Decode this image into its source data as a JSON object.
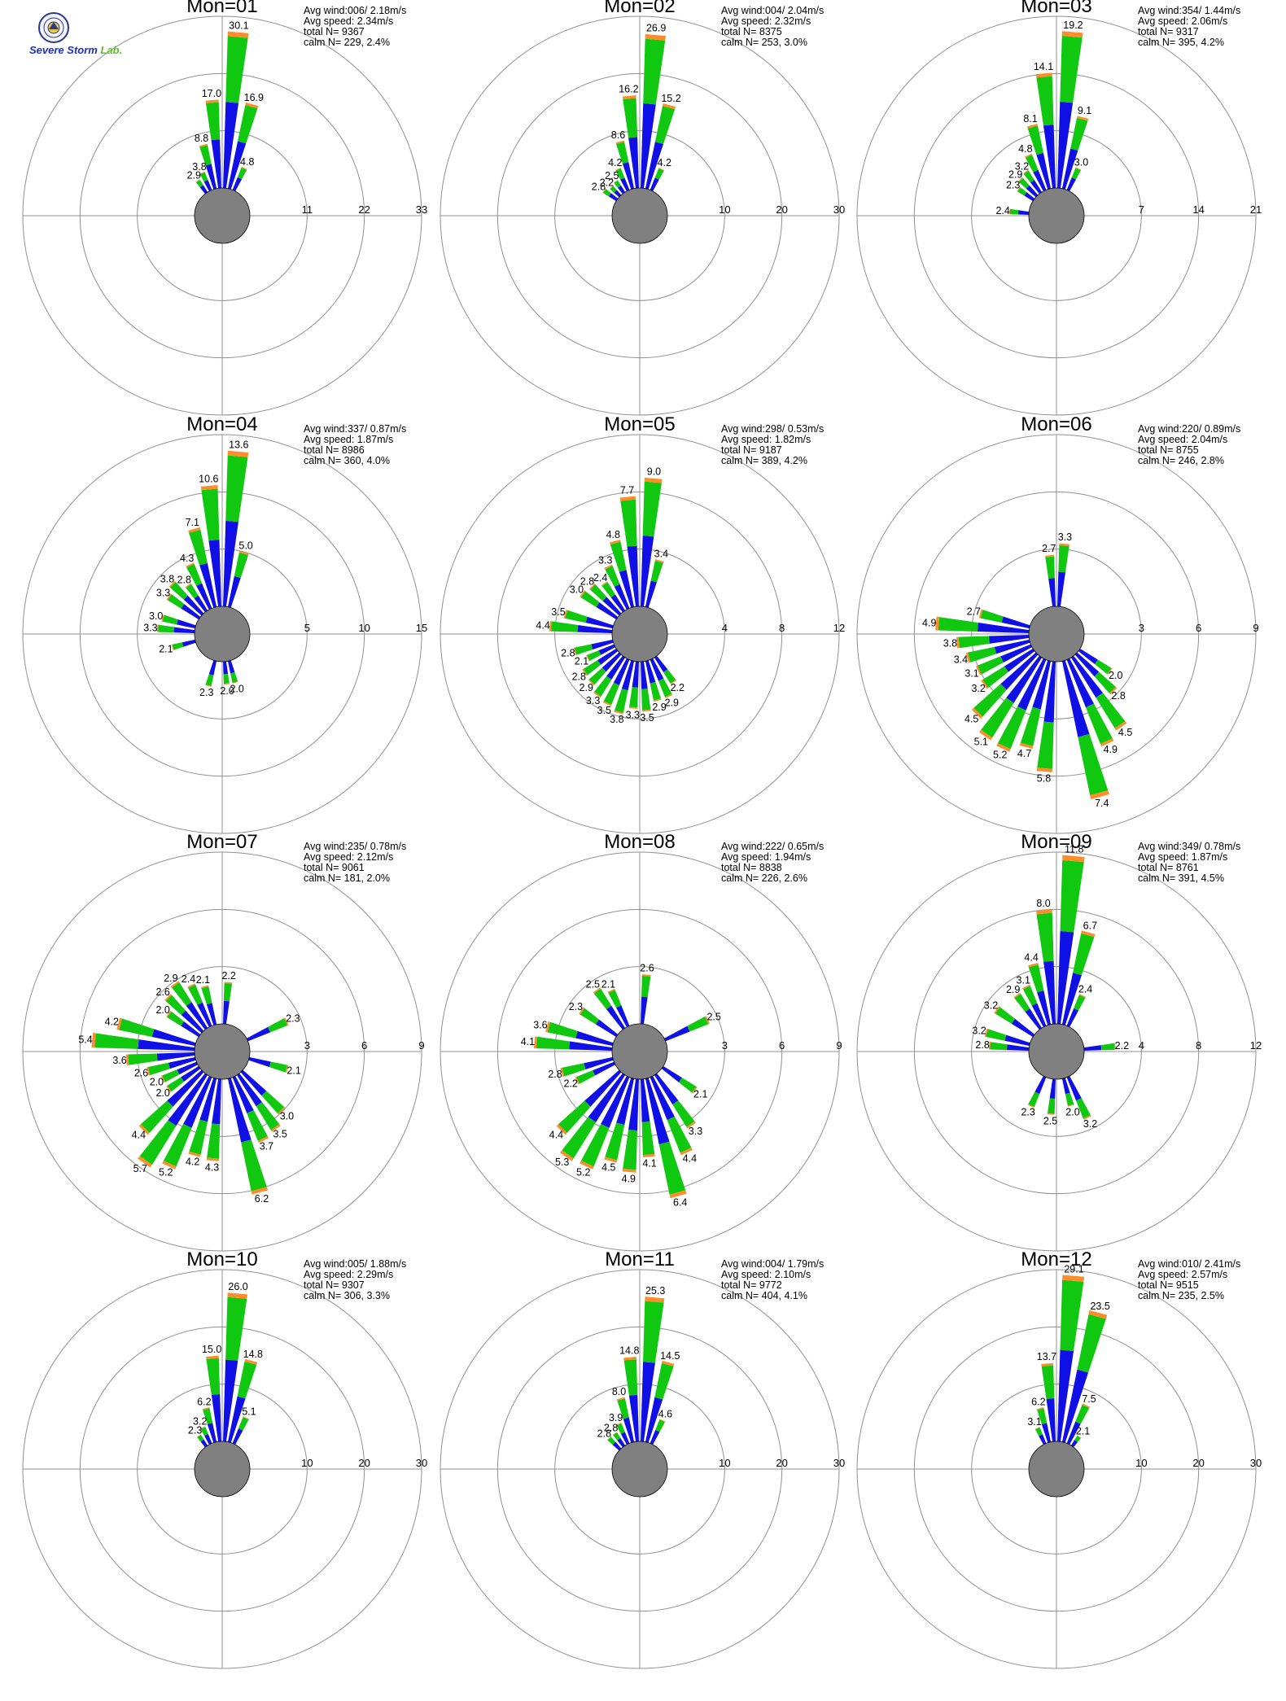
{
  "logo": {
    "line1": "Severe",
    "line2": "Storm",
    "line3": "Lab."
  },
  "colors": {
    "low": "#1010e6",
    "mid": "#10c810",
    "high": "#ff8c2a",
    "calm": "#808080",
    "grid": "#909090"
  },
  "chart_data": [
    {
      "type": "wind-rose",
      "title": "Mon=01",
      "stats": [
        "Avg wind:006/ 2.18m/s",
        "Avg speed: 2.34m/s",
        "total N=      9367",
        "calm N=    229,   2.4%"
      ],
      "rings": [
        11,
        22,
        33
      ],
      "labeled_bars": [
        {
          "dir": 5,
          "value": 30.1
        },
        {
          "dir": 355,
          "value": 17.0
        },
        {
          "dir": 15,
          "value": 16.9
        },
        {
          "dir": 345,
          "value": 8.8
        },
        {
          "dir": 25,
          "value": 4.8
        },
        {
          "dir": 335,
          "value": 3.8
        },
        {
          "dir": 325,
          "value": 2.9
        }
      ]
    },
    {
      "type": "wind-rose",
      "title": "Mon=02",
      "stats": [
        "Avg wind:004/ 2.04m/s",
        "Avg speed: 2.32m/s",
        "total N=      8375",
        "calm N=    253,   3.0%"
      ],
      "rings": [
        10,
        20,
        30
      ],
      "labeled_bars": [
        {
          "dir": 5,
          "value": 26.9
        },
        {
          "dir": 355,
          "value": 16.2
        },
        {
          "dir": 15,
          "value": 15.2
        },
        {
          "dir": 345,
          "value": 8.6
        },
        {
          "dir": 335,
          "value": 4.2
        },
        {
          "dir": 25,
          "value": 4.2
        },
        {
          "dir": 325,
          "value": 2.5
        },
        {
          "dir": 315,
          "value": 2.2
        },
        {
          "dir": 305,
          "value": 2.8
        }
      ]
    },
    {
      "type": "wind-rose",
      "title": "Mon=03",
      "stats": [
        "Avg wind:354/ 1.44m/s",
        "Avg speed: 2.06m/s",
        "total N=      9317",
        "calm N=    395,   4.2%"
      ],
      "rings": [
        7,
        14,
        21
      ],
      "labeled_bars": [
        {
          "dir": 5,
          "value": 19.2
        },
        {
          "dir": 355,
          "value": 14.1
        },
        {
          "dir": 15,
          "value": 9.1
        },
        {
          "dir": 345,
          "value": 8.1
        },
        {
          "dir": 335,
          "value": 4.8
        },
        {
          "dir": 25,
          "value": 3.0
        },
        {
          "dir": 325,
          "value": 3.2
        },
        {
          "dir": 315,
          "value": 2.9
        },
        {
          "dir": 305,
          "value": 2.3
        },
        {
          "dir": 275,
          "value": 2.4
        }
      ]
    },
    {
      "type": "wind-rose",
      "title": "Mon=04",
      "stats": [
        "Avg wind:337/ 0.87m/s",
        "Avg speed: 1.87m/s",
        "total N=      8986",
        "calm N=    360,   4.0%"
      ],
      "rings": [
        5,
        10,
        15
      ],
      "labeled_bars": [
        {
          "dir": 5,
          "value": 13.6
        },
        {
          "dir": 355,
          "value": 10.6
        },
        {
          "dir": 345,
          "value": 7.1
        },
        {
          "dir": 15,
          "value": 5.0
        },
        {
          "dir": 335,
          "value": 4.3
        },
        {
          "dir": 325,
          "value": 2.8
        },
        {
          "dir": 315,
          "value": 3.8
        },
        {
          "dir": 305,
          "value": 3.3
        },
        {
          "dir": 285,
          "value": 3.0
        },
        {
          "dir": 275,
          "value": 3.3
        },
        {
          "dir": 255,
          "value": 2.1
        },
        {
          "dir": 195,
          "value": 2.3
        },
        {
          "dir": 175,
          "value": 2.0
        },
        {
          "dir": 165,
          "value": 2.0
        }
      ]
    },
    {
      "type": "wind-rose",
      "title": "Mon=05",
      "stats": [
        "Avg wind:298/ 0.53m/s",
        "Avg speed: 1.82m/s",
        "total N=      9187",
        "calm N=    389,   4.2%"
      ],
      "rings": [
        4,
        8,
        12
      ],
      "labeled_bars": [
        {
          "dir": 5,
          "value": 9.0
        },
        {
          "dir": 355,
          "value": 7.7
        },
        {
          "dir": 345,
          "value": 4.8
        },
        {
          "dir": 15,
          "value": 3.4
        },
        {
          "dir": 335,
          "value": 3.3
        },
        {
          "dir": 325,
          "value": 2.4
        },
        {
          "dir": 315,
          "value": 2.8
        },
        {
          "dir": 305,
          "value": 3.0
        },
        {
          "dir": 285,
          "value": 3.5
        },
        {
          "dir": 275,
          "value": 4.4
        },
        {
          "dir": 255,
          "value": 2.8
        },
        {
          "dir": 245,
          "value": 2.1
        },
        {
          "dir": 235,
          "value": 2.8
        },
        {
          "dir": 225,
          "value": 2.9
        },
        {
          "dir": 215,
          "value": 3.3
        },
        {
          "dir": 205,
          "value": 3.5
        },
        {
          "dir": 195,
          "value": 3.8
        },
        {
          "dir": 185,
          "value": 3.3
        },
        {
          "dir": 175,
          "value": 3.5
        },
        {
          "dir": 165,
          "value": 2.9
        },
        {
          "dir": 155,
          "value": 2.9
        },
        {
          "dir": 145,
          "value": 2.2
        }
      ]
    },
    {
      "type": "wind-rose",
      "title": "Mon=06",
      "stats": [
        "Avg wind:220/ 0.89m/s",
        "Avg speed: 2.04m/s",
        "total N=      8755",
        "calm N=    246,   2.8%"
      ],
      "rings": [
        3,
        6,
        9
      ],
      "labeled_bars": [
        {
          "dir": 5,
          "value": 3.3
        },
        {
          "dir": 355,
          "value": 2.7
        },
        {
          "dir": 285,
          "value": 2.7
        },
        {
          "dir": 275,
          "value": 4.9
        },
        {
          "dir": 265,
          "value": 3.8
        },
        {
          "dir": 255,
          "value": 3.4
        },
        {
          "dir": 245,
          "value": 3.1
        },
        {
          "dir": 235,
          "value": 3.2
        },
        {
          "dir": 225,
          "value": 4.5
        },
        {
          "dir": 215,
          "value": 5.1
        },
        {
          "dir": 205,
          "value": 5.2
        },
        {
          "dir": 195,
          "value": 4.7
        },
        {
          "dir": 185,
          "value": 5.8
        },
        {
          "dir": 165,
          "value": 7.4
        },
        {
          "dir": 155,
          "value": 4.9
        },
        {
          "dir": 145,
          "value": 4.5
        },
        {
          "dir": 135,
          "value": 2.8
        },
        {
          "dir": 125,
          "value": 2.0
        }
      ]
    },
    {
      "type": "wind-rose",
      "title": "Mon=07",
      "stats": [
        "Avg wind:235/ 0.78m/s",
        "Avg speed: 2.12m/s",
        "total N=      9061",
        "calm N=    181,   2.0%"
      ],
      "rings": [
        3,
        6,
        9
      ],
      "labeled_bars": [
        {
          "dir": 5,
          "value": 2.2
        },
        {
          "dir": 345,
          "value": 2.1
        },
        {
          "dir": 335,
          "value": 2.4
        },
        {
          "dir": 325,
          "value": 2.9
        },
        {
          "dir": 315,
          "value": 2.6
        },
        {
          "dir": 305,
          "value": 2.0
        },
        {
          "dir": 285,
          "value": 4.2
        },
        {
          "dir": 275,
          "value": 5.4
        },
        {
          "dir": 265,
          "value": 3.6
        },
        {
          "dir": 255,
          "value": 2.6
        },
        {
          "dir": 245,
          "value": 2.0
        },
        {
          "dir": 235,
          "value": 2.0
        },
        {
          "dir": 225,
          "value": 4.4
        },
        {
          "dir": 215,
          "value": 5.7
        },
        {
          "dir": 205,
          "value": 5.2
        },
        {
          "dir": 195,
          "value": 4.2
        },
        {
          "dir": 185,
          "value": 4.3
        },
        {
          "dir": 165,
          "value": 6.2
        },
        {
          "dir": 155,
          "value": 3.7
        },
        {
          "dir": 145,
          "value": 3.5
        },
        {
          "dir": 135,
          "value": 3.0
        },
        {
          "dir": 105,
          "value": 2.1
        },
        {
          "dir": 65,
          "value": 2.3
        }
      ]
    },
    {
      "type": "wind-rose",
      "title": "Mon=08",
      "stats": [
        "Avg wind:222/ 0.65m/s",
        "Avg speed: 1.94m/s",
        "total N=      8838",
        "calm N=    226,   2.6%"
      ],
      "rings": [
        3,
        6,
        9
      ],
      "labeled_bars": [
        {
          "dir": 5,
          "value": 2.6
        },
        {
          "dir": 335,
          "value": 2.1
        },
        {
          "dir": 325,
          "value": 2.5
        },
        {
          "dir": 305,
          "value": 2.3
        },
        {
          "dir": 285,
          "value": 3.6
        },
        {
          "dir": 275,
          "value": 4.1
        },
        {
          "dir": 255,
          "value": 2.8
        },
        {
          "dir": 245,
          "value": 2.2
        },
        {
          "dir": 225,
          "value": 4.4
        },
        {
          "dir": 215,
          "value": 5.3
        },
        {
          "dir": 205,
          "value": 5.2
        },
        {
          "dir": 195,
          "value": 4.5
        },
        {
          "dir": 185,
          "value": 4.9
        },
        {
          "dir": 175,
          "value": 4.1
        },
        {
          "dir": 165,
          "value": 6.4
        },
        {
          "dir": 155,
          "value": 4.4
        },
        {
          "dir": 145,
          "value": 3.3
        },
        {
          "dir": 125,
          "value": 2.1
        },
        {
          "dir": 65,
          "value": 2.5
        }
      ]
    },
    {
      "type": "wind-rose",
      "title": "Mon=09",
      "stats": [
        "Avg wind:349/ 0.78m/s",
        "Avg speed: 1.87m/s",
        "total N=      8761",
        "calm N=    391,   4.5%"
      ],
      "rings": [
        4,
        8,
        12
      ],
      "labeled_bars": [
        {
          "dir": 5,
          "value": 11.8
        },
        {
          "dir": 355,
          "value": 8.0
        },
        {
          "dir": 15,
          "value": 6.7
        },
        {
          "dir": 345,
          "value": 4.4
        },
        {
          "dir": 25,
          "value": 2.4
        },
        {
          "dir": 335,
          "value": 3.1
        },
        {
          "dir": 325,
          "value": 2.9
        },
        {
          "dir": 305,
          "value": 3.2
        },
        {
          "dir": 285,
          "value": 3.2
        },
        {
          "dir": 275,
          "value": 2.8
        },
        {
          "dir": 205,
          "value": 2.3
        },
        {
          "dir": 185,
          "value": 2.5
        },
        {
          "dir": 165,
          "value": 2.0
        },
        {
          "dir": 155,
          "value": 3.2
        },
        {
          "dir": 85,
          "value": 2.2
        }
      ]
    },
    {
      "type": "wind-rose",
      "title": "Mon=10",
      "stats": [
        "Avg wind:005/ 1.88m/s",
        "Avg speed: 2.29m/s",
        "total N=      9307",
        "calm N=    306,   3.3%"
      ],
      "rings": [
        10,
        20,
        30
      ],
      "labeled_bars": [
        {
          "dir": 5,
          "value": 26.0
        },
        {
          "dir": 355,
          "value": 15.0
        },
        {
          "dir": 15,
          "value": 14.8
        },
        {
          "dir": 345,
          "value": 6.2
        },
        {
          "dir": 25,
          "value": 5.1
        },
        {
          "dir": 335,
          "value": 3.2
        },
        {
          "dir": 325,
          "value": 2.3
        }
      ]
    },
    {
      "type": "wind-rose",
      "title": "Mon=11",
      "stats": [
        "Avg wind:004/ 1.79m/s",
        "Avg speed: 2.10m/s",
        "total N=      9772",
        "calm N=    404,   4.1%"
      ],
      "rings": [
        10,
        20,
        30
      ],
      "labeled_bars": [
        {
          "dir": 5,
          "value": 25.3
        },
        {
          "dir": 355,
          "value": 14.8
        },
        {
          "dir": 15,
          "value": 14.5
        },
        {
          "dir": 345,
          "value": 8.0
        },
        {
          "dir": 25,
          "value": 4.6
        },
        {
          "dir": 335,
          "value": 3.9
        },
        {
          "dir": 325,
          "value": 2.8
        },
        {
          "dir": 315,
          "value": 2.8
        }
      ]
    },
    {
      "type": "wind-rose",
      "title": "Mon=12",
      "stats": [
        "Avg wind:010/ 2.41m/s",
        "Avg speed: 2.57m/s",
        "total N=      9515",
        "calm N=    235,   2.5%"
      ],
      "rings": [
        10,
        20,
        30
      ],
      "labeled_bars": [
        {
          "dir": 5,
          "value": 29.1
        },
        {
          "dir": 15,
          "value": 23.5
        },
        {
          "dir": 355,
          "value": 13.7
        },
        {
          "dir": 25,
          "value": 7.5
        },
        {
          "dir": 345,
          "value": 6.2
        },
        {
          "dir": 335,
          "value": 3.1
        },
        {
          "dir": 35,
          "value": 2.1
        }
      ]
    }
  ]
}
